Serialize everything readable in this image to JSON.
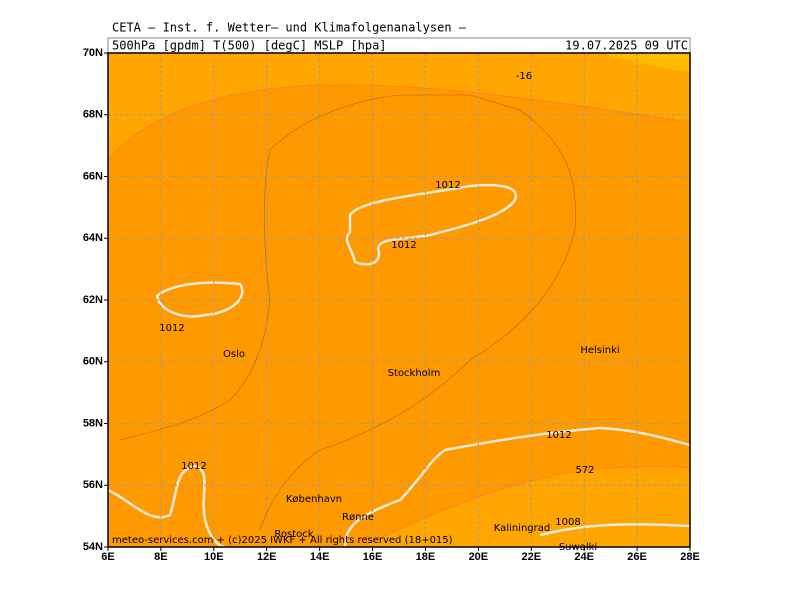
{
  "header": {
    "line1": "CETA – Inst. f. Wetter– und Klimafolgenanalysen –",
    "line2": "500hPa [gpdm] T(500) [degC] MSLP [hpa]",
    "datetime": "19.07.2025 09 UTC"
  },
  "axes": {
    "lat": [
      "70N",
      "68N",
      "66N",
      "64N",
      "62N",
      "60N",
      "58N",
      "56N",
      "54N"
    ],
    "lon": [
      "6E",
      "8E",
      "10E",
      "12E",
      "14E",
      "16E",
      "18E",
      "20E",
      "22E",
      "24E",
      "26E",
      "28E"
    ]
  },
  "places": [
    "Oslo",
    "Stockholm",
    "Helsinki",
    "København",
    "Rønne",
    "Rostock",
    "Kaliningrad",
    "Suwalki"
  ],
  "contour_labels": [
    "1012",
    "1012",
    "1012",
    "1012",
    "1012",
    "1008",
    "572",
    "-16"
  ],
  "footer": "meteo-services.com + (c)2025 IWKF + All rights reserved (18+015)"
}
